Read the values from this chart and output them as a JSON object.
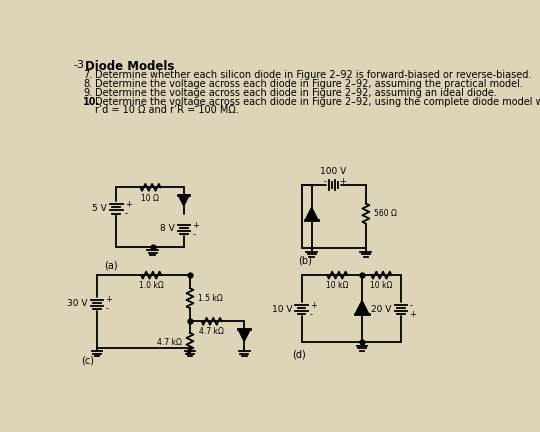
{
  "page_background": "#ddd5b8",
  "title": "Diode Models",
  "title_number": "-3",
  "prob7": "Determine whether each silicon diode in Figure 2–92 is forward-biased or reverse-biased.",
  "prob8": "Determine the voltage across each diode in Figure 2–92, assuming the practical model.",
  "prob9": "Determine the voltage across each diode in Figure 2–92, assuming an ideal diode.",
  "prob10a": "Determine the voltage across each diode in Figure 2–92, using the complete diode model with",
  "prob10b": "r’d = 10 Ω and r’R = 100 MΩ.",
  "label_a": "(a)",
  "label_b": "(b)",
  "label_c": "(c)",
  "label_d": "(d)",
  "vs_a": "5 V",
  "r_a": "10 Ω",
  "vb_a": "8 V",
  "vs_b": "100 V",
  "r_b": "560 Ω",
  "vs_c": "30 V",
  "r1_c": "1.0 kΩ",
  "r2_c": "1.5 kΩ",
  "r3_c": "4.7 kΩ",
  "r4_c": "4.7 kΩ",
  "r1_d": "10 kΩ",
  "r2_d": "10 kΩ",
  "vs1_d": "10 V",
  "vs2_d": "20 V"
}
